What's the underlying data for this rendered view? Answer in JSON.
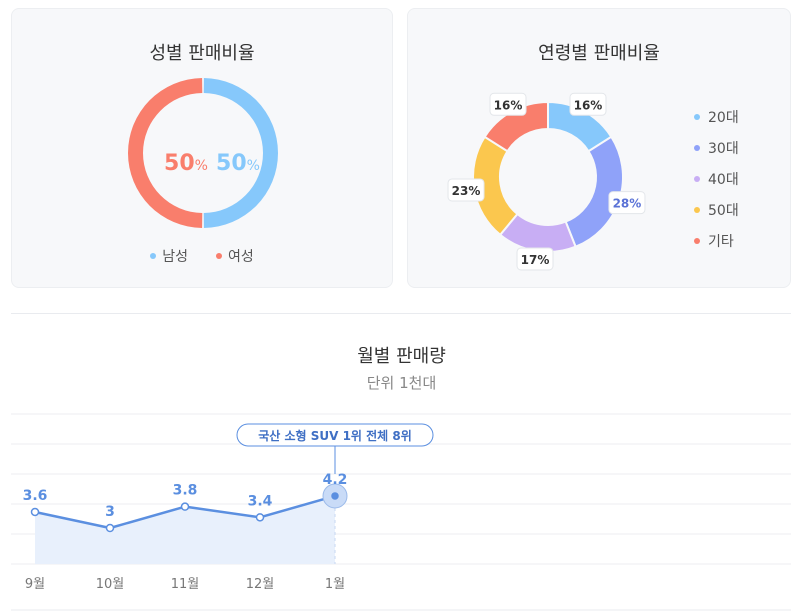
{
  "chart_data": [
    {
      "type": "pie",
      "title": "성별 판매비율",
      "categories": [
        "남성",
        "여성"
      ],
      "values": [
        50,
        50
      ],
      "value_suffix": "%",
      "colors": [
        "#86c8fb",
        "#f97e6c"
      ],
      "legend_position": "bottom"
    },
    {
      "type": "pie",
      "title": "연령별 판매비율",
      "categories": [
        "20대",
        "30대",
        "40대",
        "50대",
        "기타"
      ],
      "values": [
        16,
        28,
        17,
        23,
        16
      ],
      "value_suffix": "%",
      "colors": [
        "#86c8fb",
        "#8fa2f9",
        "#c8aef4",
        "#fbc74e",
        "#f97e6c"
      ],
      "legend_position": "right"
    },
    {
      "type": "line",
      "title": "월별 판매량",
      "subtitle": "단위 1천대",
      "x": [
        "9월",
        "10월",
        "11월",
        "12월",
        "1월"
      ],
      "series": [
        {
          "values": [
            3.6,
            3,
            3.8,
            3.4,
            4.2
          ]
        }
      ],
      "annotation": {
        "index": 4,
        "text": "국산 소형 SUV 1위 전체 8위"
      },
      "color": "#5b8fe0",
      "grid": true
    }
  ]
}
